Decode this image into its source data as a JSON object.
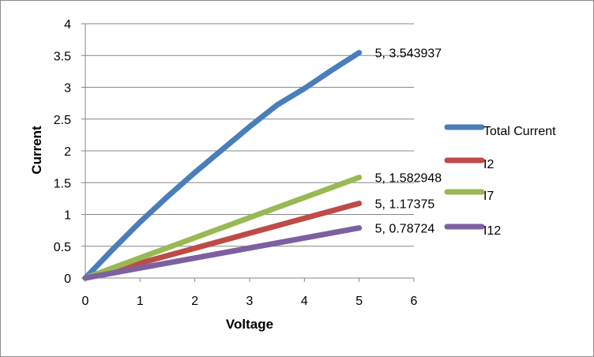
{
  "chart_data": {
    "type": "line",
    "title": "",
    "xlabel": "Voltage",
    "ylabel": "Current",
    "xlim": [
      0,
      6
    ],
    "ylim": [
      0,
      4
    ],
    "x_ticks": [
      "0",
      "1",
      "2",
      "3",
      "4",
      "5",
      "6"
    ],
    "y_ticks": [
      "0",
      "0.5",
      "1",
      "1.5",
      "2",
      "2.5",
      "3",
      "3.5",
      "4"
    ],
    "grid": "horizontal",
    "legend_position": "right",
    "series": [
      {
        "name": "Total Current",
        "color": "#4a7ebb",
        "points": [
          [
            0,
            0
          ],
          [
            0.5,
            0.45
          ],
          [
            1,
            0.88
          ],
          [
            1.5,
            1.28
          ],
          [
            2,
            1.66
          ],
          [
            2.5,
            2.02
          ],
          [
            3,
            2.38
          ],
          [
            3.5,
            2.72
          ],
          [
            4,
            2.98
          ],
          [
            4.5,
            3.27
          ],
          [
            5,
            3.543937
          ]
        ],
        "end_label": "5, 3.543937"
      },
      {
        "name": "I2",
        "color": "#be4b48",
        "points": [
          [
            0,
            0
          ],
          [
            1,
            0.2348
          ],
          [
            2,
            0.4695
          ],
          [
            3,
            0.7043
          ],
          [
            4,
            0.939
          ],
          [
            5,
            1.17375
          ]
        ],
        "end_label": "5, 1.17375"
      },
      {
        "name": "I7",
        "color": "#98b954",
        "points": [
          [
            0,
            0
          ],
          [
            1,
            0.3166
          ],
          [
            2,
            0.6332
          ],
          [
            3,
            0.9498
          ],
          [
            4,
            1.2664
          ],
          [
            5,
            1.582948
          ]
        ],
        "end_label": "5, 1.582948"
      },
      {
        "name": "I12",
        "color": "#7d60a0",
        "points": [
          [
            0,
            0
          ],
          [
            1,
            0.1574
          ],
          [
            2,
            0.3149
          ],
          [
            3,
            0.4723
          ],
          [
            4,
            0.6298
          ],
          [
            5,
            0.78724
          ]
        ],
        "end_label": "5, 0.78724"
      }
    ]
  }
}
